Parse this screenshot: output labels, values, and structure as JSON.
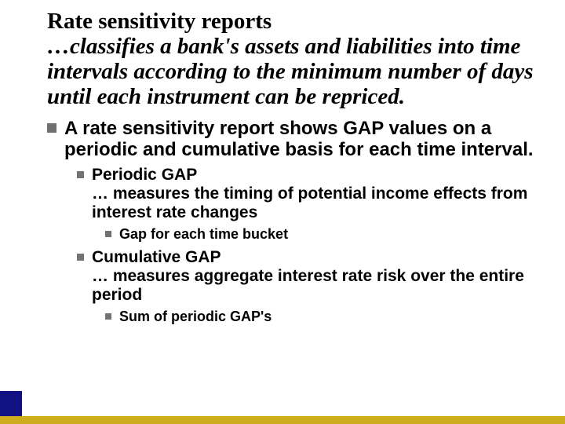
{
  "slide_width": 720,
  "slide_height": 540,
  "background_color": "#ffffff",
  "title": {
    "line1": "Rate sensitivity reports",
    "sub": "…classifies a bank's assets and liabilities into time intervals according to the minimum number of days until each instrument can be repriced.",
    "font_family": "Times New Roman",
    "font_weight": "bold",
    "font_size_pt": 22,
    "color": "#000000"
  },
  "body": {
    "font_family": "Arial",
    "color": "#000000",
    "lvl1_font_size_pt": 18,
    "lvl2_font_size_pt": 16,
    "lvl3_font_size_pt": 14,
    "bullet_color": "#6f7070",
    "items": [
      {
        "text": "A rate sensitivity report shows GAP values on a periodic and cumulative basis for each time interval.",
        "children": [
          {
            "label": "Periodic GAP",
            "desc": "… measures the timing of potential income effects from interest rate changes",
            "children": [
              {
                "text": "Gap for each time bucket"
              }
            ]
          },
          {
            "label": "Cumulative GAP",
            "desc": "… measures aggregate interest rate risk over the entire period",
            "children": [
              {
                "text": "Sum of periodic GAP's"
              }
            ]
          }
        ]
      }
    ]
  },
  "decoration": {
    "left_stripe_color": "#111184",
    "bottom_stripe_color": "#cdad1d",
    "bottom_stripe_height": 10,
    "left_stripe_width": 28,
    "left_stripe_height": 42
  }
}
